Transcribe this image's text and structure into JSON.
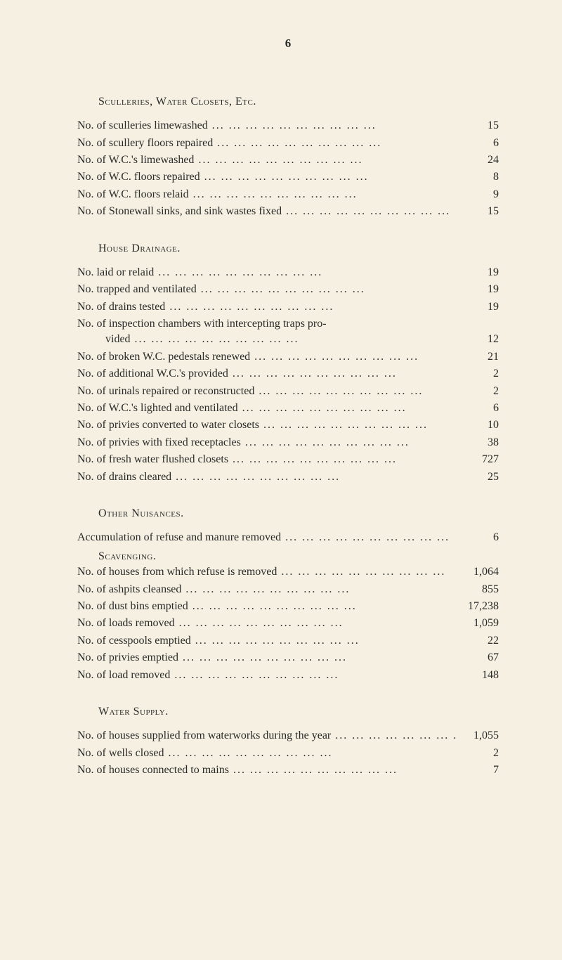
{
  "page_number": "6",
  "sections": {
    "sculleries": {
      "heading": "Sculleries, Water Closets, Etc.",
      "items": [
        {
          "label": "No. of sculleries limewashed",
          "value": "15"
        },
        {
          "label": "No. of scullery floors repaired",
          "value": "6"
        },
        {
          "label": "No. of W.C.'s limewashed",
          "value": "24"
        },
        {
          "label": "No. of W.C. floors repaired",
          "value": "8"
        },
        {
          "label": "No. of W.C. floors relaid",
          "value": "9"
        },
        {
          "label": "No. of Stonewall sinks, and sink wastes fixed",
          "value": "15"
        }
      ]
    },
    "drainage": {
      "heading": "House Drainage.",
      "items": [
        {
          "label": "No. laid or relaid",
          "value": "19"
        },
        {
          "label": "No. trapped and ventilated",
          "value": "19"
        },
        {
          "label": "No. of drains tested",
          "value": "19"
        },
        {
          "label": "No. of inspection chambers with intercepting traps pro-",
          "continuation": "vided",
          "value": "12"
        },
        {
          "label": "No. of broken W.C. pedestals renewed",
          "value": "21"
        },
        {
          "label": "No. of additional W.C.'s provided",
          "value": "2"
        },
        {
          "label": "No. of urinals repaired or reconstructed",
          "value": "2"
        },
        {
          "label": "No. of W.C.'s lighted and ventilated",
          "value": "6"
        },
        {
          "label": "No. of privies converted to water closets",
          "value": "10"
        },
        {
          "label": "No. of privies with fixed receptacles",
          "value": "38"
        },
        {
          "label": "No. of fresh water flushed closets",
          "value": "727"
        },
        {
          "label": "No. of drains cleared",
          "value": "25"
        }
      ]
    },
    "nuisances": {
      "heading": "Other Nuisances.",
      "accumulation": {
        "label": "Accumulation of refuse and manure removed",
        "value": "6"
      },
      "sub_heading": "Scavenging.",
      "items": [
        {
          "label": "No. of houses from which refuse is removed",
          "value": "1,064"
        },
        {
          "label": "No. of ashpits cleansed",
          "value": "855"
        },
        {
          "label": "No. of dust bins emptied",
          "value": "17,238"
        },
        {
          "label": "No. of loads removed",
          "value": "1,059"
        },
        {
          "label": "No. of cesspools emptied",
          "value": "22"
        },
        {
          "label": "No. of privies emptied",
          "value": "67"
        },
        {
          "label": "No. of load removed",
          "value": "148"
        }
      ]
    },
    "water": {
      "heading": "Water Supply.",
      "items": [
        {
          "label": "No. of houses supplied from waterworks during the year",
          "value": "1,055"
        },
        {
          "label": "No. of wells closed",
          "value": "2"
        },
        {
          "label": "No. of houses connected to mains",
          "value": "7"
        }
      ]
    }
  },
  "colors": {
    "background": "#f5f0e1",
    "text": "#2a2a2a"
  },
  "typography": {
    "font_family": "Georgia, Times New Roman, serif",
    "base_size": 16,
    "heading_style": "small-caps"
  }
}
